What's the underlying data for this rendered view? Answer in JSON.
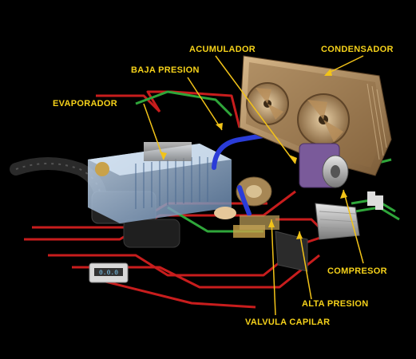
{
  "colors": {
    "background": "#000000",
    "label": "#f6d21a",
    "leader_line": "#f2c318",
    "high_pressure_line": "#c81d1d",
    "low_pressure_line": "#2a3cd8",
    "green_line": "#2fa63a",
    "condenser_frame": "#b08a5a",
    "evaporator": "#9fb9d8"
  },
  "labels": {
    "acumulador": "ACUMULADOR",
    "condensador": "CONDENSADOR",
    "baja_presion": "BAJA PRESION",
    "evaporador": "EVAPORADOR",
    "compresor": "COMPRESOR",
    "alta_presion": "ALTA PRESION",
    "valvula_capilar": "VALVULA CAPILAR"
  },
  "control_panel_display": "0.0.0"
}
